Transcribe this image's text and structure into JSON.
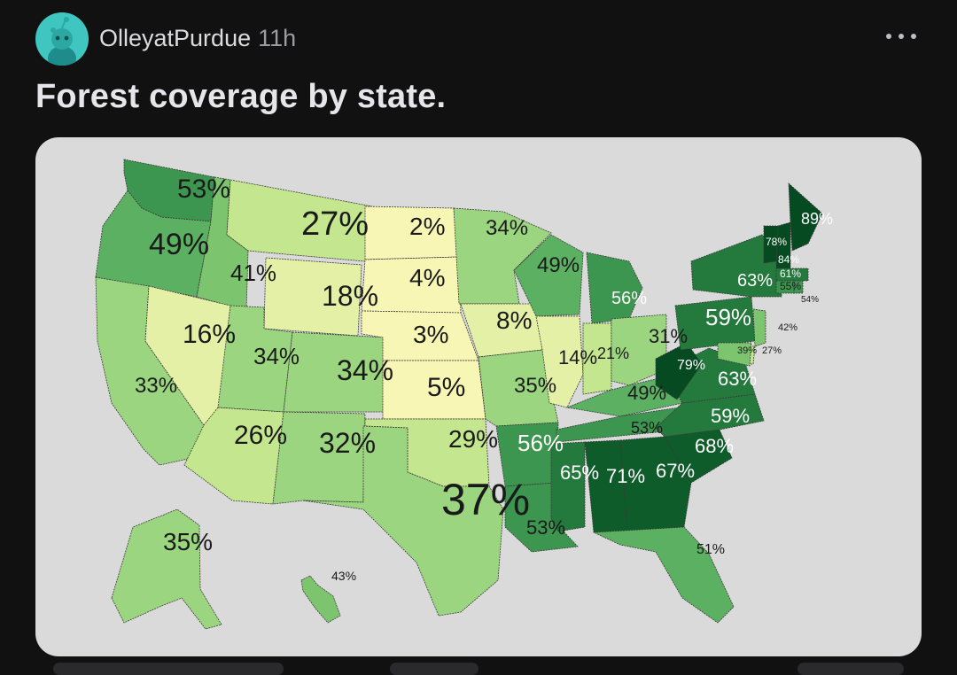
{
  "post": {
    "author": "OlleyatPurdue",
    "time": "11h",
    "title": "Forest coverage by state."
  },
  "colors": {
    "background": "#111112",
    "card": "#dadada",
    "avatar": "#3fc6c1",
    "scale": [
      "#f8f6b4",
      "#e3f0a6",
      "#c4e68e",
      "#9cd57f",
      "#7cc56e",
      "#5bb062",
      "#3d964f",
      "#237a3c",
      "#0e5c2a",
      "#064a22"
    ]
  },
  "icons": {
    "avatar": "snoo-avatar-icon",
    "more": "more-dots-icon"
  },
  "chart_data": {
    "type": "choropleth",
    "title": "",
    "unit": "%",
    "regions": [
      {
        "id": "WA",
        "value": 53,
        "label": "53%"
      },
      {
        "id": "OR",
        "value": 49,
        "label": "49%"
      },
      {
        "id": "CA",
        "value": 33,
        "label": "33%"
      },
      {
        "id": "ID",
        "value": 41,
        "label": "41%"
      },
      {
        "id": "NV",
        "value": 16,
        "label": "16%"
      },
      {
        "id": "MT",
        "value": 27,
        "label": "27%"
      },
      {
        "id": "WY",
        "value": 18,
        "label": "18%"
      },
      {
        "id": "UT",
        "value": 34,
        "label": "34%"
      },
      {
        "id": "CO",
        "value": 34,
        "label": "34%"
      },
      {
        "id": "AZ",
        "value": 26,
        "label": "26%"
      },
      {
        "id": "NM",
        "value": 32,
        "label": "32%"
      },
      {
        "id": "ND",
        "value": 2,
        "label": "2%"
      },
      {
        "id": "SD",
        "value": 4,
        "label": "4%"
      },
      {
        "id": "NE",
        "value": 3,
        "label": "3%"
      },
      {
        "id": "KS",
        "value": 5,
        "label": "5%"
      },
      {
        "id": "OK",
        "value": 29,
        "label": "29%"
      },
      {
        "id": "TX",
        "value": 37,
        "label": "37%"
      },
      {
        "id": "MN",
        "value": 34,
        "label": "34%"
      },
      {
        "id": "IA",
        "value": 8,
        "label": "8%"
      },
      {
        "id": "MO",
        "value": 35,
        "label": "35%"
      },
      {
        "id": "AR",
        "value": 56,
        "label": "56%"
      },
      {
        "id": "LA",
        "value": 53,
        "label": "53%"
      },
      {
        "id": "WI",
        "value": 49,
        "label": "49%"
      },
      {
        "id": "MI",
        "value": 56,
        "label": "56%"
      },
      {
        "id": "IL",
        "value": 14,
        "label": "14%"
      },
      {
        "id": "IN",
        "value": 21,
        "label": "21%"
      },
      {
        "id": "OH",
        "value": 31,
        "label": "31%"
      },
      {
        "id": "KY",
        "value": 49,
        "label": "49%"
      },
      {
        "id": "TN",
        "value": 53,
        "label": "53%"
      },
      {
        "id": "MS",
        "value": 65,
        "label": "65%"
      },
      {
        "id": "AL",
        "value": 71,
        "label": "71%"
      },
      {
        "id": "GA",
        "value": 67,
        "label": "67%"
      },
      {
        "id": "FL",
        "value": 51,
        "label": "51%"
      },
      {
        "id": "SC",
        "value": 68,
        "label": "68%"
      },
      {
        "id": "NC",
        "value": 59,
        "label": "59%"
      },
      {
        "id": "VA",
        "value": 63,
        "label": "63%"
      },
      {
        "id": "WV",
        "value": 79,
        "label": "79%"
      },
      {
        "id": "PA",
        "value": 59,
        "label": "59%"
      },
      {
        "id": "NY",
        "value": 63,
        "label": "63%"
      },
      {
        "id": "VT",
        "value": 78,
        "label": "78%"
      },
      {
        "id": "NH",
        "value": 84,
        "label": "84%"
      },
      {
        "id": "ME",
        "value": 89,
        "label": "89%"
      },
      {
        "id": "MA",
        "value": 61,
        "label": "61%"
      },
      {
        "id": "CT",
        "value": 55,
        "label": "55%"
      },
      {
        "id": "RI",
        "value": 54,
        "label": "54%"
      },
      {
        "id": "NJ",
        "value": 42,
        "label": "42%"
      },
      {
        "id": "DE",
        "value": 27,
        "label": "27%"
      },
      {
        "id": "MD",
        "value": 39,
        "label": "39%"
      },
      {
        "id": "AK",
        "value": 35,
        "label": "35%"
      },
      {
        "id": "HI",
        "value": 43,
        "label": "43%"
      }
    ]
  }
}
